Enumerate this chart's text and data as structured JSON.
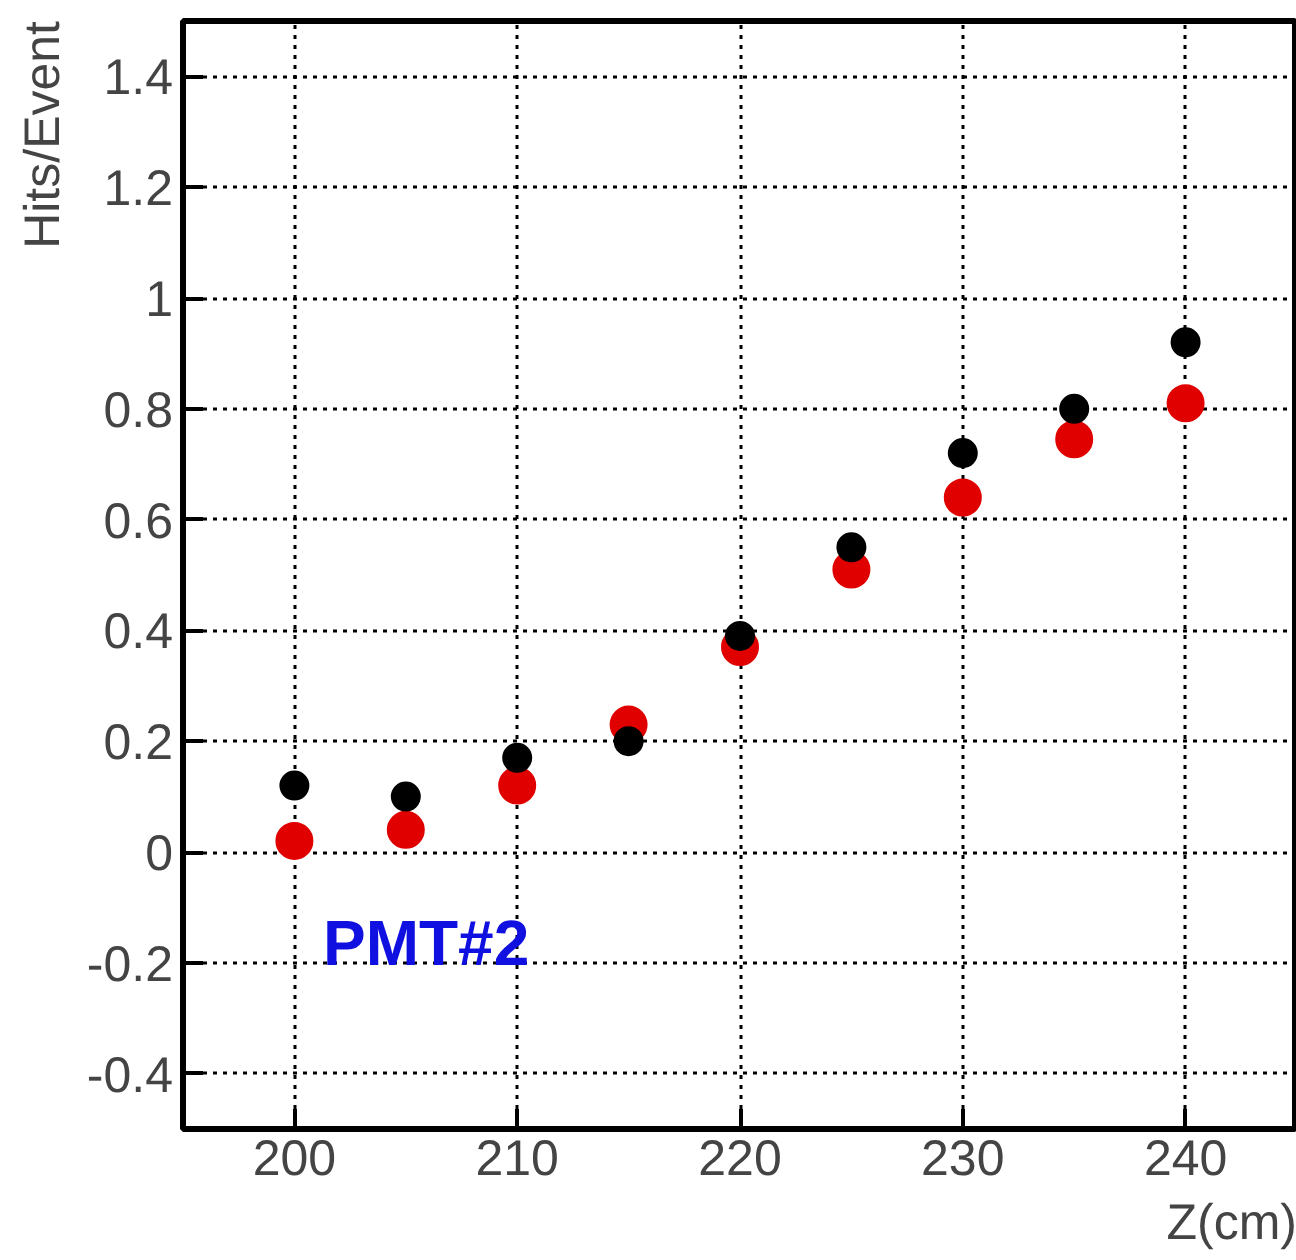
{
  "chart_data": {
    "type": "scatter",
    "xlabel": "Z(cm)",
    "ylabel": "Hits/Event",
    "x": [
      200,
      205,
      210,
      215,
      220,
      225,
      230,
      235,
      240
    ],
    "series": [
      {
        "color": "#e00000",
        "values": [
          0.02,
          0.04,
          0.12,
          0.23,
          0.37,
          0.51,
          0.64,
          0.745,
          0.81
        ]
      },
      {
        "color": "#000000",
        "values": [
          0.12,
          0.1,
          0.17,
          0.2,
          0.39,
          0.55,
          0.72,
          0.8,
          0.92
        ]
      }
    ],
    "xlim": [
      195,
      245
    ],
    "ylim": [
      -0.5,
      1.5
    ],
    "xticks": [
      200,
      210,
      220,
      230,
      240
    ],
    "yticks": [
      -0.4,
      -0.2,
      0,
      0.2,
      0.4,
      0.6,
      0.8,
      1,
      1.2,
      1.4
    ],
    "grid": true,
    "marker": "circle",
    "annotations": [
      "PMT#2"
    ]
  }
}
